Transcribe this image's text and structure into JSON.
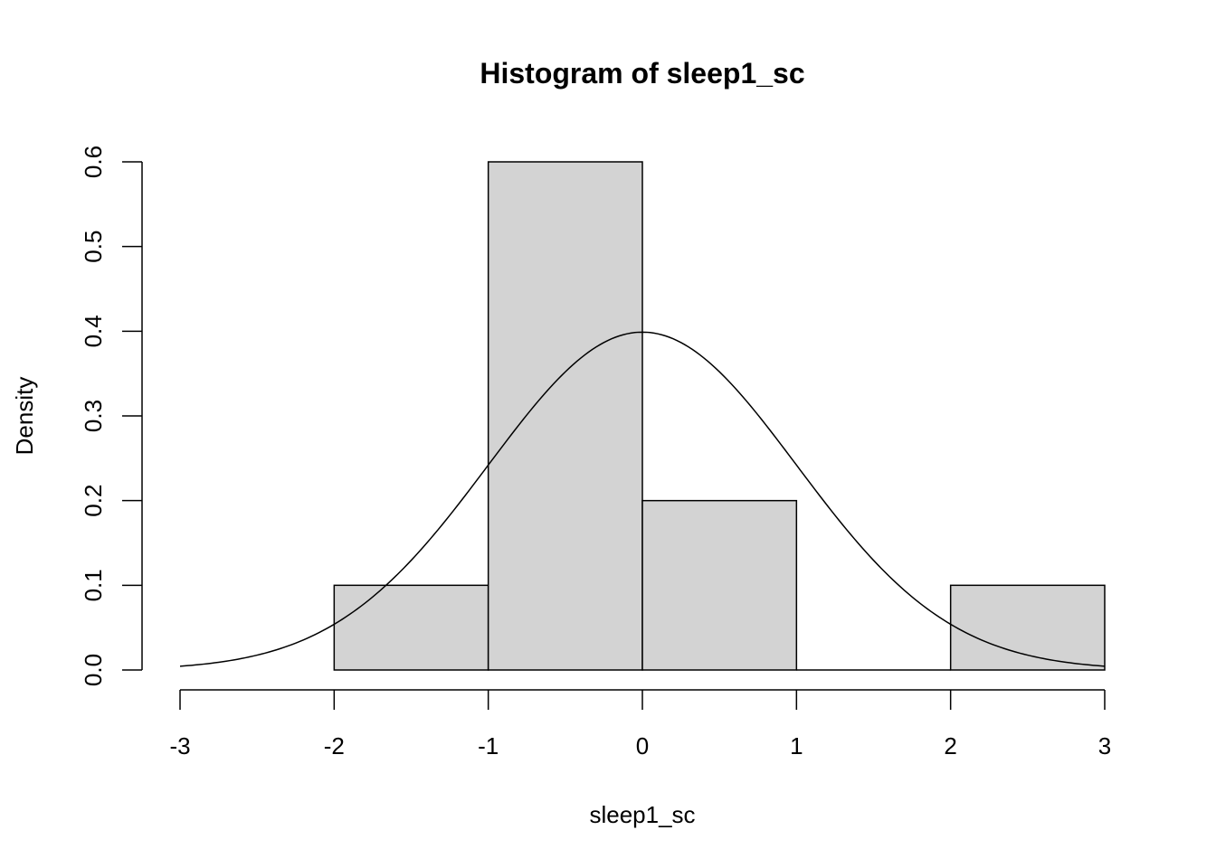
{
  "chart_data": {
    "type": "bar",
    "title": "Histogram of sleep1_sc",
    "xlabel": "sleep1_sc",
    "ylabel": "Density",
    "bins": [
      {
        "from": -2,
        "to": -1,
        "density": 0.1
      },
      {
        "from": -1,
        "to": 0,
        "density": 0.6
      },
      {
        "from": 0,
        "to": 1,
        "density": 0.2
      },
      {
        "from": 1,
        "to": 2,
        "density": 0.0
      },
      {
        "from": 2,
        "to": 3,
        "density": 0.1
      }
    ],
    "x_ticks": [
      "-3",
      "-2",
      "-1",
      "0",
      "1",
      "2",
      "3"
    ],
    "y_ticks": [
      "0.0",
      "0.1",
      "0.2",
      "0.3",
      "0.4",
      "0.5",
      "0.6"
    ],
    "xlim": [
      -3,
      3
    ],
    "ylim": [
      0,
      0.6
    ],
    "overlay": {
      "type": "normal-density-curve",
      "mean": 0,
      "sd": 1,
      "x_range": [
        -3,
        3
      ]
    },
    "grid": false,
    "bar_fill": "#d3d3d3",
    "line_color": "#000000"
  }
}
